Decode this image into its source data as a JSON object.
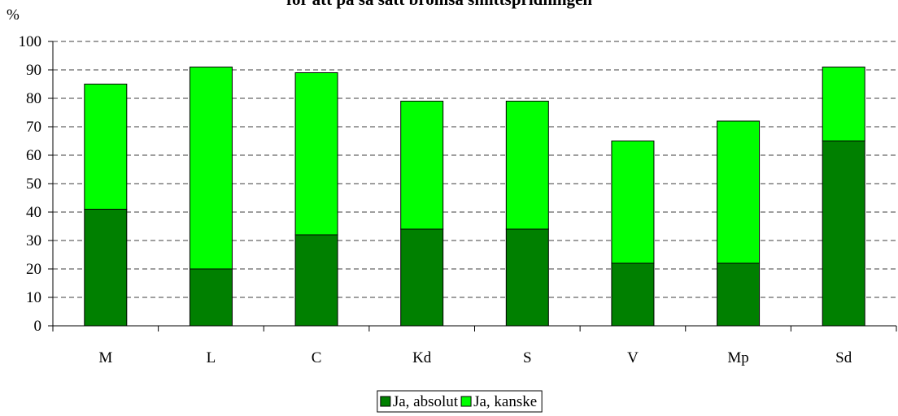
{
  "chart_data": {
    "type": "stacked_bar",
    "title": "för att på så sätt bromsa smittspridningen",
    "y_label": "%",
    "categories": [
      "M",
      "L",
      "C",
      "Kd",
      "S",
      "V",
      "Mp",
      "Sd"
    ],
    "series": [
      {
        "name": "Ja, absolut",
        "color": "#008000",
        "values": [
          41,
          20,
          32,
          34,
          34,
          22,
          22,
          65
        ]
      },
      {
        "name": "Ja, kanske",
        "color": "#00ff00",
        "values": [
          44,
          71,
          57,
          45,
          45,
          43,
          50,
          26
        ]
      }
    ],
    "ylim": [
      0,
      100
    ],
    "yticks": [
      0,
      10,
      20,
      30,
      40,
      50,
      60,
      70,
      80,
      90,
      100
    ],
    "grid": true,
    "legend": "bottom"
  }
}
